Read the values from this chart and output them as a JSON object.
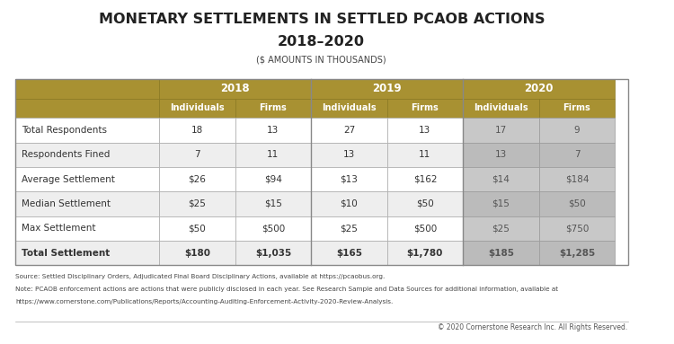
{
  "title_line1": "MONETARY SETTLEMENTS IN SETTLED PCAOB ACTIONS",
  "title_line2": "2018–2020",
  "title_line3": "($ AMOUNTS IN THOUSANDS)",
  "year_headers": [
    "2018",
    "2019",
    "2020"
  ],
  "sub_headers": [
    "Individuals",
    "Firms",
    "Individuals",
    "Firms",
    "Individuals",
    "Firms"
  ],
  "row_labels": [
    "Total Respondents",
    "Respondents Fined",
    "Average Settlement",
    "Median Settlement",
    "Max Settlement",
    "Total Settlement"
  ],
  "row_bold": [
    false,
    false,
    false,
    false,
    false,
    true
  ],
  "data": [
    [
      "18",
      "13",
      "27",
      "13",
      "17",
      "9"
    ],
    [
      "7",
      "11",
      "13",
      "11",
      "13",
      "7"
    ],
    [
      "$26",
      "$94",
      "$13",
      "$162",
      "$14",
      "$184"
    ],
    [
      "$25",
      "$15",
      "$10",
      "$50",
      "$15",
      "$50"
    ],
    [
      "$50",
      "$500",
      "$25",
      "$500",
      "$25",
      "$750"
    ],
    [
      "$180",
      "$1,035",
      "$165",
      "$1,780",
      "$185",
      "$1,285"
    ]
  ],
  "gold_color": "#A89132",
  "light_gray_col": "#C8C8C8",
  "white_bg": "#FFFFFF",
  "text_color_header": "#FFFFFF",
  "text_color_data_18_19": "#333333",
  "text_color_data_20": "#555555",
  "footer_text_line1": "Source: Settled Disciplinary Orders, Adjudicated Final Board Disciplinary Actions, available at https://pcaobus.org.",
  "footer_text_line2": "Note: PCAOB enforcement actions are actions that were publicly disclosed in each year. See Research Sample and Data Sources for additional information, available at",
  "footer_text_line3": "https://www.cornerstone.com/Publications/Reports/Accounting-Auditing-Enforcement-Activity-2020-Review-Analysis.",
  "copyright_text": "© 2020 Cornerstone Research Inc. All Rights Reserved."
}
